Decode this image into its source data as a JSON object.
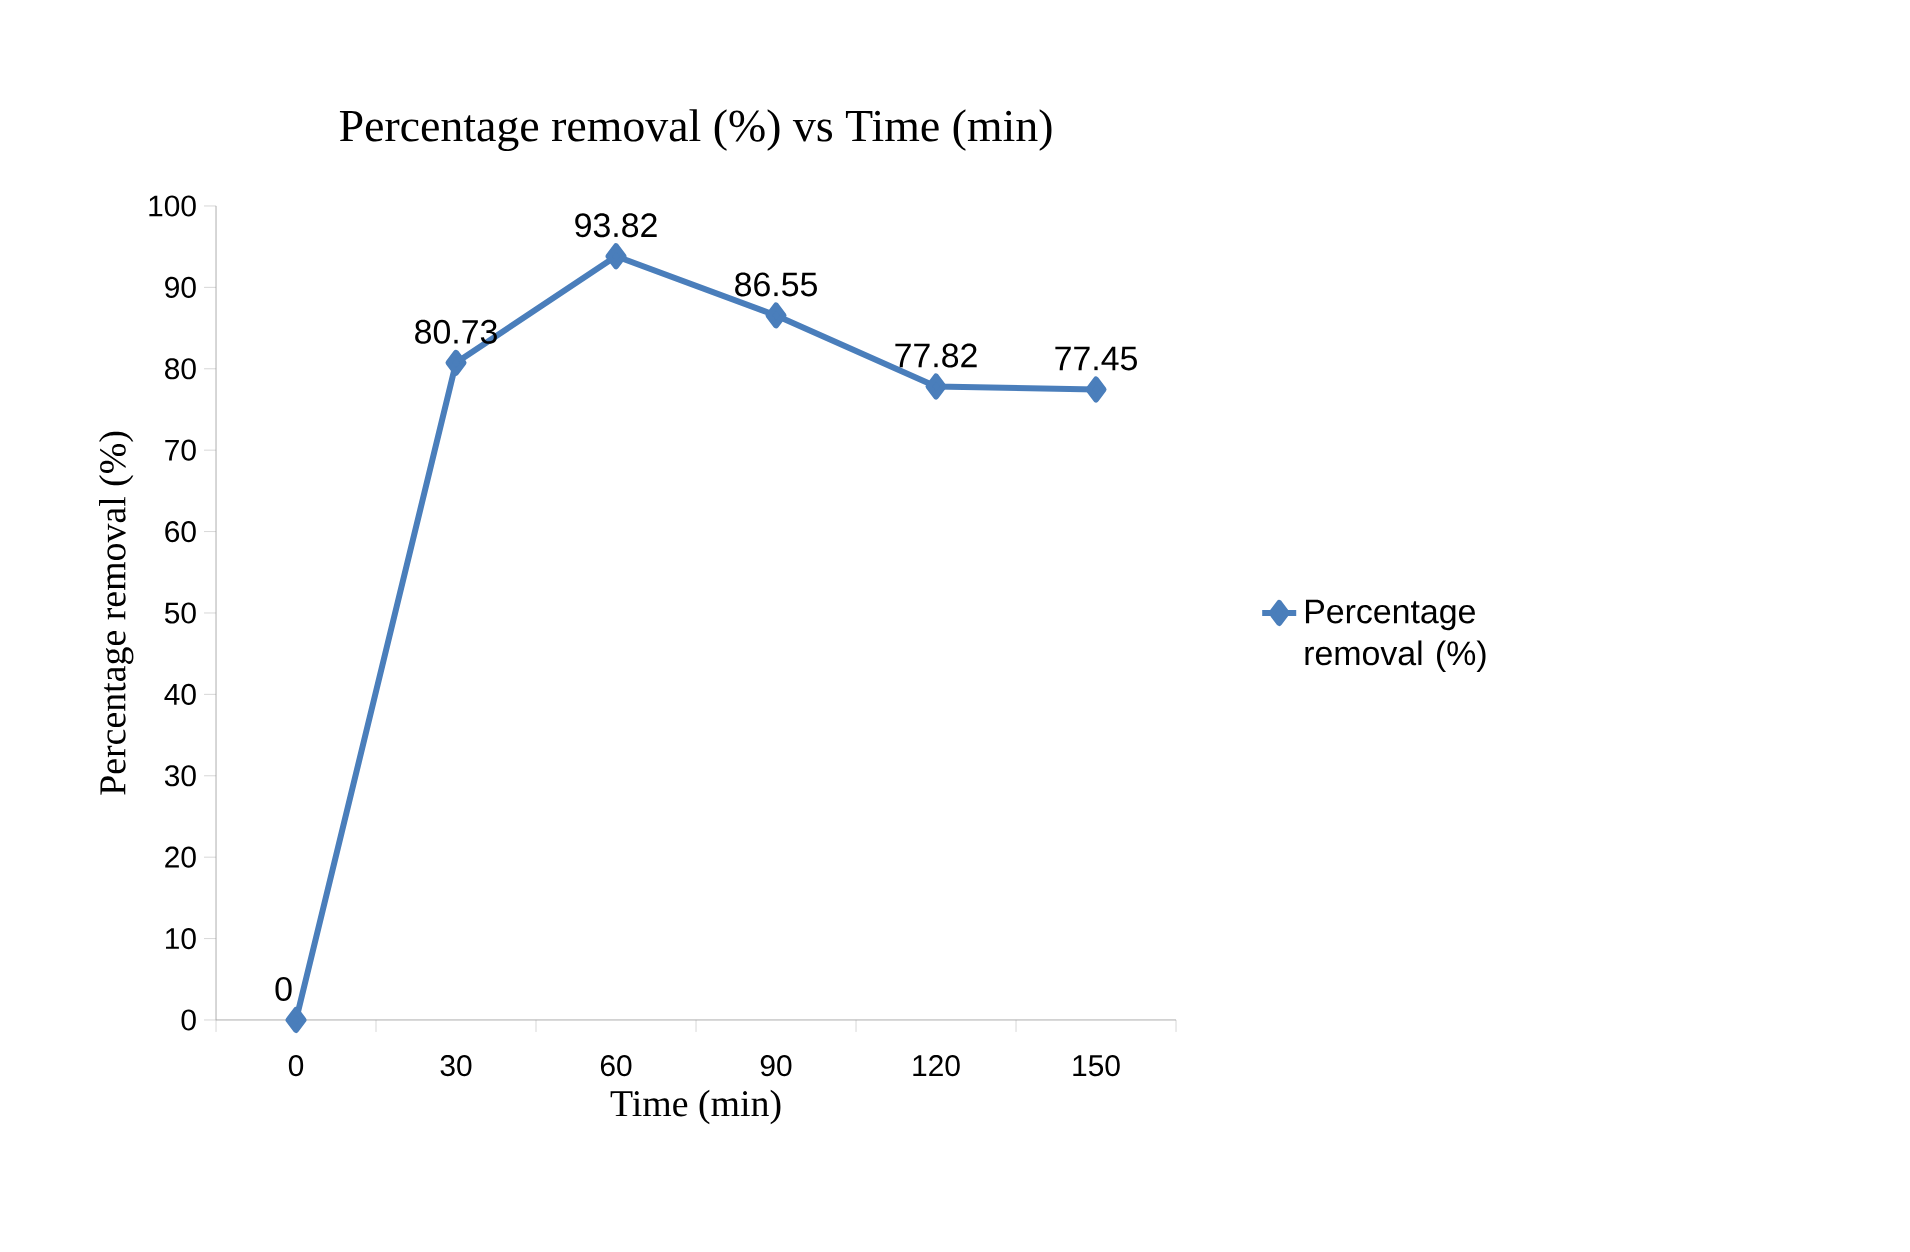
{
  "chart_data": {
    "type": "line",
    "title": "Percentage removal (%) vs Time (min)",
    "xlabel": "Time (min)",
    "ylabel": "Percentage removal (%)",
    "categories": [
      "0",
      "30",
      "60",
      "90",
      "120",
      "150"
    ],
    "series": [
      {
        "name": "Percentage removal (%)",
        "color": "#4a7ebb",
        "values": [
          0,
          80.73,
          93.82,
          86.55,
          77.82,
          77.45
        ]
      }
    ],
    "ylim": [
      0,
      100
    ],
    "yticks": [
      0,
      10,
      20,
      30,
      40,
      50,
      60,
      70,
      80,
      90,
      100
    ],
    "data_labels": true,
    "legend": "right",
    "marker": "diamond",
    "line_style": "solid",
    "grid": false
  }
}
